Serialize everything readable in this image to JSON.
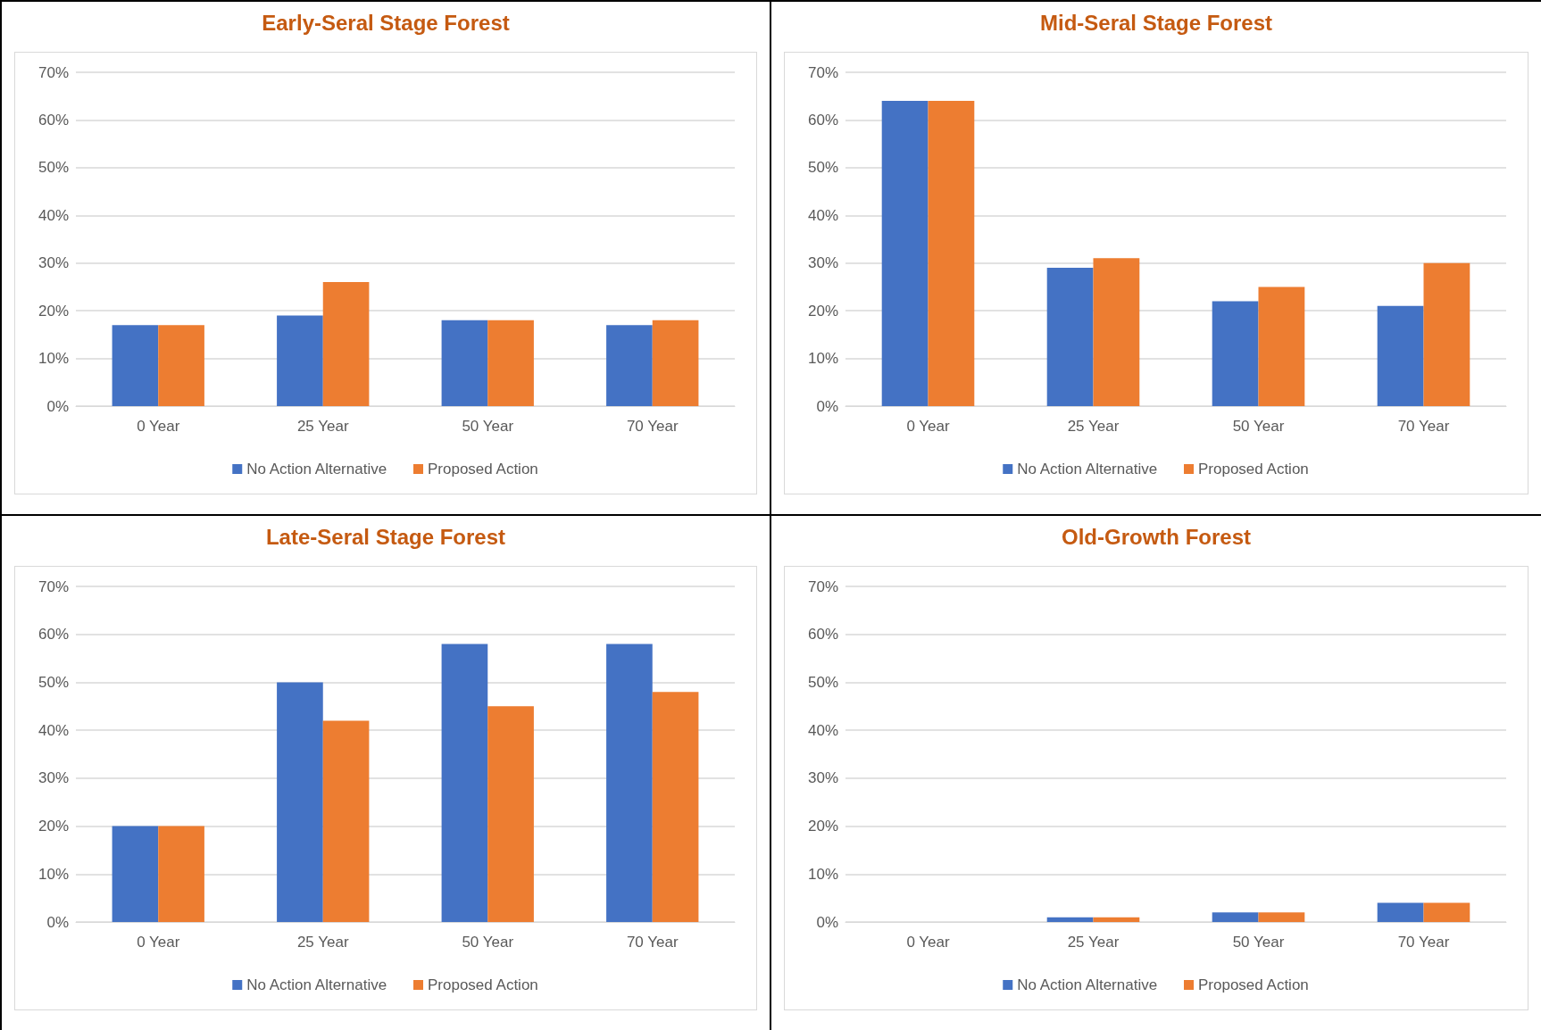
{
  "chart_data": [
    {
      "type": "bar",
      "title": "Early-Seral Stage Forest",
      "categories": [
        "0 Year",
        "25 Year",
        "50 Year",
        "70 Year"
      ],
      "series": [
        {
          "name": "No Action Alternative",
          "color": "#4472c4",
          "values": [
            17,
            19,
            18,
            17
          ]
        },
        {
          "name": "Proposed Action",
          "color": "#ed7d31",
          "values": [
            17,
            26,
            18,
            18
          ]
        }
      ],
      "ylim": [
        0,
        70
      ],
      "yticks": [
        {
          "value": 0,
          "label": "0%"
        },
        {
          "value": 10,
          "label": "10%"
        },
        {
          "value": 20,
          "label": "20%"
        },
        {
          "value": 30,
          "label": "30%"
        },
        {
          "value": 40,
          "label": "40%"
        },
        {
          "value": 50,
          "label": "50%"
        },
        {
          "value": 60,
          "label": "60%"
        },
        {
          "value": 70,
          "label": "70%"
        }
      ],
      "grid": "y",
      "legend": "bottom"
    },
    {
      "type": "bar",
      "title": "Mid-Seral Stage Forest",
      "categories": [
        "0 Year",
        "25 Year",
        "50 Year",
        "70 Year"
      ],
      "series": [
        {
          "name": "No Action Alternative",
          "color": "#4472c4",
          "values": [
            64,
            29,
            22,
            21
          ]
        },
        {
          "name": "Proposed Action",
          "color": "#ed7d31",
          "values": [
            64,
            31,
            25,
            30
          ]
        }
      ],
      "ylim": [
        0,
        70
      ],
      "yticks": [
        {
          "value": 0,
          "label": "0%"
        },
        {
          "value": 10,
          "label": "10%"
        },
        {
          "value": 20,
          "label": "20%"
        },
        {
          "value": 30,
          "label": "30%"
        },
        {
          "value": 40,
          "label": "40%"
        },
        {
          "value": 50,
          "label": "50%"
        },
        {
          "value": 60,
          "label": "60%"
        },
        {
          "value": 70,
          "label": "70%"
        }
      ],
      "grid": "y",
      "legend": "bottom"
    },
    {
      "type": "bar",
      "title": "Late-Seral Stage Forest",
      "categories": [
        "0 Year",
        "25 Year",
        "50 Year",
        "70 Year"
      ],
      "series": [
        {
          "name": "No Action Alternative",
          "color": "#4472c4",
          "values": [
            20,
            50,
            58,
            58
          ]
        },
        {
          "name": "Proposed Action",
          "color": "#ed7d31",
          "values": [
            20,
            42,
            45,
            48
          ]
        }
      ],
      "ylim": [
        0,
        70
      ],
      "yticks": [
        {
          "value": 0,
          "label": "0%"
        },
        {
          "value": 10,
          "label": "10%"
        },
        {
          "value": 20,
          "label": "20%"
        },
        {
          "value": 30,
          "label": "30%"
        },
        {
          "value": 40,
          "label": "40%"
        },
        {
          "value": 50,
          "label": "50%"
        },
        {
          "value": 60,
          "label": "60%"
        },
        {
          "value": 70,
          "label": "70%"
        }
      ],
      "grid": "y",
      "legend": "bottom"
    },
    {
      "type": "bar",
      "title": "Old-Growth Forest",
      "categories": [
        "0 Year",
        "25 Year",
        "50 Year",
        "70 Year"
      ],
      "series": [
        {
          "name": "No Action Alternative",
          "color": "#4472c4",
          "values": [
            0,
            1,
            2,
            4
          ]
        },
        {
          "name": "Proposed Action",
          "color": "#ed7d31",
          "values": [
            0,
            1,
            2,
            4
          ]
        }
      ],
      "ylim": [
        0,
        70
      ],
      "yticks": [
        {
          "value": 0,
          "label": "0%"
        },
        {
          "value": 10,
          "label": "10%"
        },
        {
          "value": 20,
          "label": "20%"
        },
        {
          "value": 30,
          "label": "30%"
        },
        {
          "value": 40,
          "label": "40%"
        },
        {
          "value": 50,
          "label": "50%"
        },
        {
          "value": 60,
          "label": "60%"
        },
        {
          "value": 70,
          "label": "70%"
        }
      ],
      "grid": "y",
      "legend": "bottom"
    }
  ]
}
